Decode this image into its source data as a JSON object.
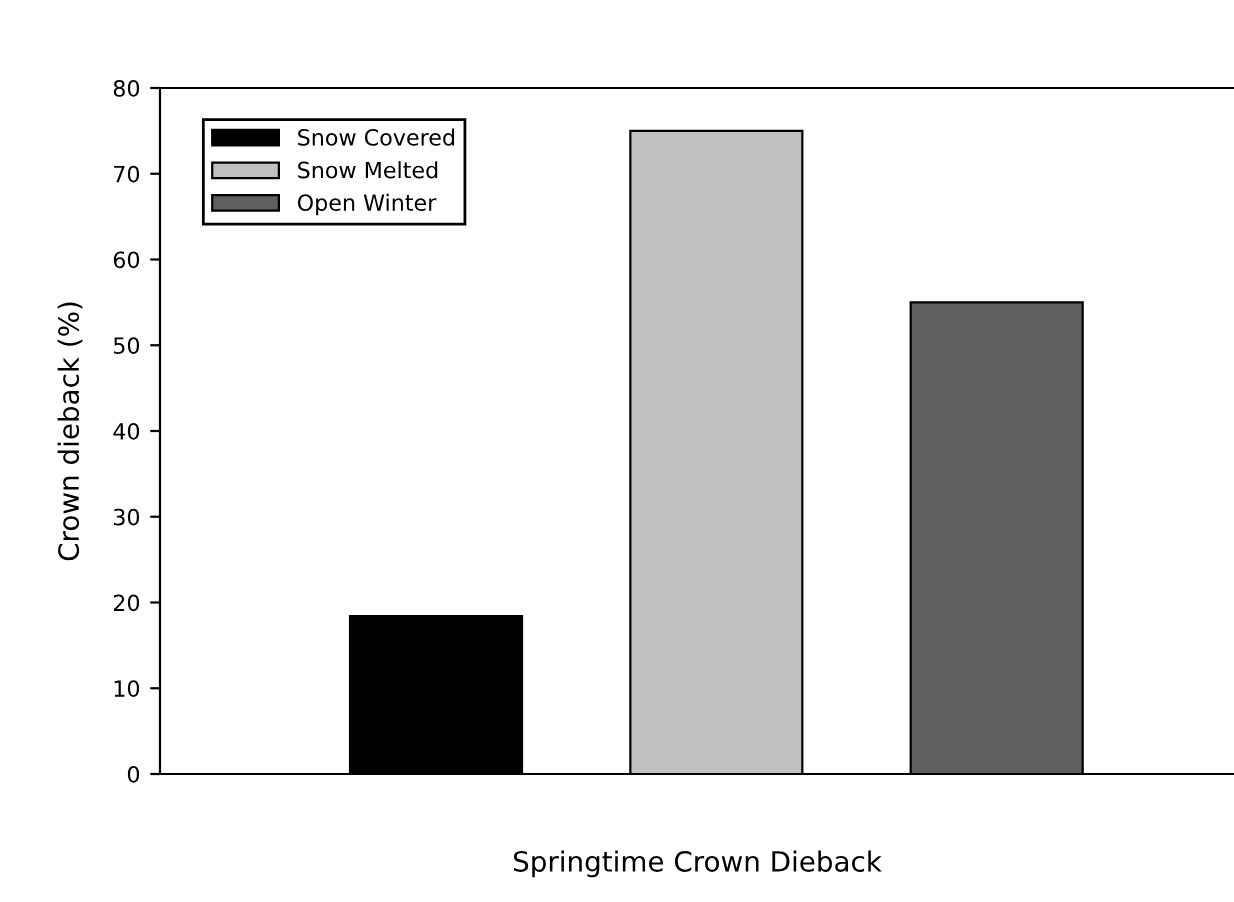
{
  "chart_data": {
    "type": "bar",
    "xlabel": "Springtime Crown Dieback",
    "ylabel": "Crown dieback (%)",
    "categories": [
      null
    ],
    "series": [
      {
        "name": "Snow Covered",
        "color": "#000000",
        "values": [
          18.4
        ]
      },
      {
        "name": "Snow Melted",
        "color": "#c0c0c0",
        "values": [
          75
        ]
      },
      {
        "name": "Open Winter",
        "color": "#5f5f5f",
        "values": [
          55
        ]
      }
    ],
    "ylim": [
      0,
      80
    ],
    "yticks": [
      0,
      10,
      20,
      30,
      40,
      50,
      60,
      70,
      80
    ],
    "grid": false,
    "legend": "top left"
  }
}
